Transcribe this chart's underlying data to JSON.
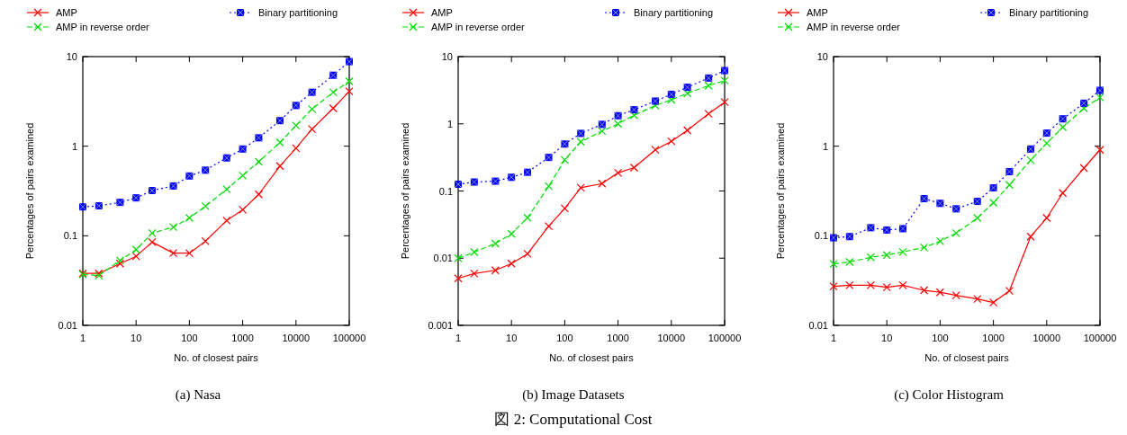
{
  "chart_data": [
    {
      "type": "line",
      "title": "(a)  Nasa",
      "xlabel": "No. of closest pairs",
      "ylabel": "Percentages of pairs examined",
      "log": "xy",
      "legend": "top",
      "xlim": [
        1,
        100000
      ],
      "ylim": [
        0.01,
        10
      ],
      "xticks": [
        1,
        10,
        100,
        1000,
        10000,
        100000
      ],
      "yticks": [
        0.01,
        0.1,
        1,
        10
      ],
      "x": [
        1,
        2,
        5,
        10,
        20,
        50,
        100,
        200,
        500,
        1000,
        2000,
        5000,
        10000,
        20000,
        50000,
        100000
      ],
      "series": [
        {
          "name": "AMP",
          "color": "#ff0000",
          "marker": "cross",
          "line_style": "solid",
          "values": [
            0.038,
            0.038,
            0.049,
            0.059,
            0.085,
            0.064,
            0.064,
            0.087,
            0.148,
            0.195,
            0.29,
            0.6,
            0.95,
            1.55,
            2.65,
            4.1
          ]
        },
        {
          "name": "AMP in reverse order",
          "color": "#00dd00",
          "marker": "cross",
          "line_style": "dashed",
          "values": [
            0.037,
            0.036,
            0.053,
            0.07,
            0.107,
            0.125,
            0.158,
            0.214,
            0.33,
            0.47,
            0.67,
            1.1,
            1.7,
            2.6,
            4.0,
            5.3
          ]
        },
        {
          "name": "Binary partitioning",
          "color": "#0000ff",
          "marker": "square",
          "line_style": "dotted",
          "values": [
            0.21,
            0.216,
            0.236,
            0.265,
            0.32,
            0.36,
            0.465,
            0.54,
            0.74,
            0.93,
            1.24,
            1.93,
            2.85,
            4.0,
            6.2,
            8.8
          ]
        }
      ]
    },
    {
      "type": "line",
      "title": "(b)  Image Datasets",
      "xlabel": "No. of closest pairs",
      "ylabel": "Percentages of pairs examined",
      "log": "xy",
      "legend": "top",
      "xlim": [
        1,
        100000
      ],
      "ylim": [
        0.001,
        10
      ],
      "xticks": [
        1,
        10,
        100,
        1000,
        10000,
        100000
      ],
      "yticks": [
        0.001,
        0.01,
        0.1,
        1,
        10
      ],
      "annotations": [
        "図 2: Computational Cost"
      ],
      "x": [
        1,
        2,
        5,
        10,
        20,
        50,
        100,
        200,
        500,
        1000,
        2000,
        5000,
        10000,
        20000,
        50000,
        100000
      ],
      "series": [
        {
          "name": "AMP",
          "color": "#ff0000",
          "marker": "cross",
          "line_style": "solid",
          "values": [
            0.005,
            0.0059,
            0.0066,
            0.0083,
            0.0116,
            0.03,
            0.055,
            0.112,
            0.129,
            0.186,
            0.223,
            0.41,
            0.55,
            0.8,
            1.41,
            2.1
          ]
        },
        {
          "name": "AMP in reverse order",
          "color": "#00dd00",
          "marker": "cross",
          "line_style": "dashed",
          "values": [
            0.01,
            0.0123,
            0.0165,
            0.023,
            0.04,
            0.118,
            0.29,
            0.54,
            0.78,
            1.0,
            1.34,
            1.87,
            2.28,
            2.85,
            3.7,
            4.4
          ]
        },
        {
          "name": "Binary partitioning",
          "color": "#0000ff",
          "marker": "square",
          "line_style": "dotted",
          "values": [
            0.126,
            0.136,
            0.14,
            0.16,
            0.19,
            0.316,
            0.5,
            0.72,
            0.98,
            1.32,
            1.62,
            2.18,
            2.75,
            3.5,
            4.8,
            6.2
          ]
        }
      ]
    },
    {
      "type": "line",
      "title": "(c)  Color Histogram",
      "xlabel": "No. of closest pairs",
      "ylabel": "Percentages of pairs examined",
      "log": "xy",
      "legend": "top",
      "xlim": [
        1,
        100000
      ],
      "ylim": [
        0.01,
        10
      ],
      "xticks": [
        1,
        10,
        100,
        1000,
        10000,
        100000
      ],
      "yticks": [
        0.01,
        0.1,
        1,
        10
      ],
      "x": [
        1,
        2,
        5,
        10,
        20,
        50,
        100,
        200,
        500,
        1000,
        2000,
        5000,
        10000,
        20000,
        50000,
        100000
      ],
      "series": [
        {
          "name": "AMP",
          "color": "#ff0000",
          "marker": "cross",
          "line_style": "solid",
          "values": [
            0.0272,
            0.028,
            0.028,
            0.0266,
            0.028,
            0.0246,
            0.0234,
            0.0216,
            0.0197,
            0.018,
            0.0243,
            0.098,
            0.158,
            0.3,
            0.57,
            0.91
          ]
        },
        {
          "name": "AMP in reverse order",
          "color": "#00dd00",
          "marker": "cross",
          "line_style": "dashed",
          "values": [
            0.0486,
            0.051,
            0.0575,
            0.061,
            0.066,
            0.074,
            0.087,
            0.107,
            0.158,
            0.234,
            0.37,
            0.7,
            1.08,
            1.63,
            2.65,
            3.5
          ]
        },
        {
          "name": "Binary partitioning",
          "color": "#0000ff",
          "marker": "square",
          "line_style": "dotted",
          "values": [
            0.095,
            0.098,
            0.123,
            0.116,
            0.12,
            0.26,
            0.23,
            0.2,
            0.242,
            0.343,
            0.52,
            0.93,
            1.4,
            2.02,
            3.02,
            4.2
          ]
        }
      ]
    }
  ]
}
